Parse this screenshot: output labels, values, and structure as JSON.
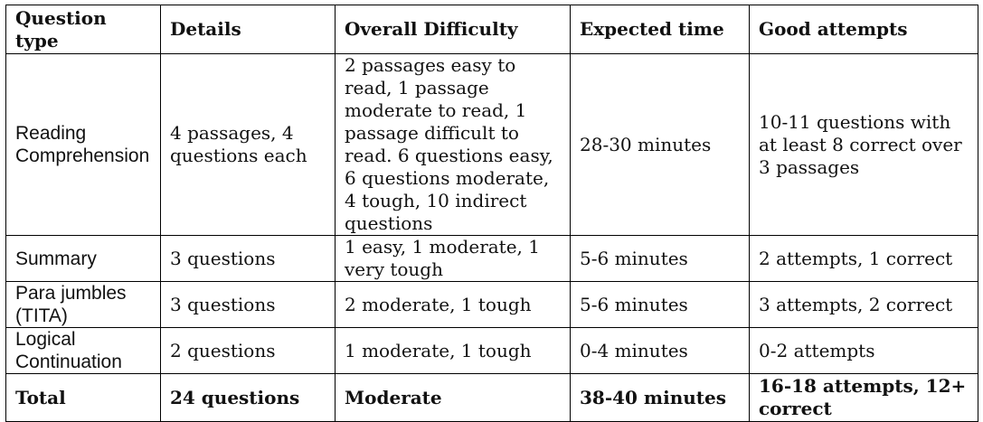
{
  "table": {
    "headers": [
      "Question type",
      "Details",
      "Overall Difficulty",
      "Expected time",
      "Good attempts"
    ],
    "rows": [
      [
        "Reading Comprehension",
        "4 passages, 4 questions each",
        "2 passages easy to read, 1 passage moderate to read, 1 passage difficult to read. 6 questions easy, 6 questions moderate, 4 tough, 10 indirect questions",
        "28-30 minutes",
        "10-11 questions with at least 8 correct over 3 passages"
      ],
      [
        "Summary",
        "3 questions",
        "1 easy, 1 moderate, 1 very tough",
        "5-6 minutes",
        "2 attempts, 1 correct"
      ],
      [
        "Para jumbles (TITA)",
        "3 questions",
        "2 moderate, 1 tough",
        "5-6 minutes",
        "3 attempts, 2 correct"
      ],
      [
        "Logical Continuation",
        "2 questions",
        "1 moderate, 1 tough",
        "0-4 minutes",
        "0-2 attempts"
      ],
      [
        "Total",
        "24 questions",
        "Moderate",
        "38-40 minutes",
        "16-18 attempts, 12+ correct"
      ]
    ]
  }
}
